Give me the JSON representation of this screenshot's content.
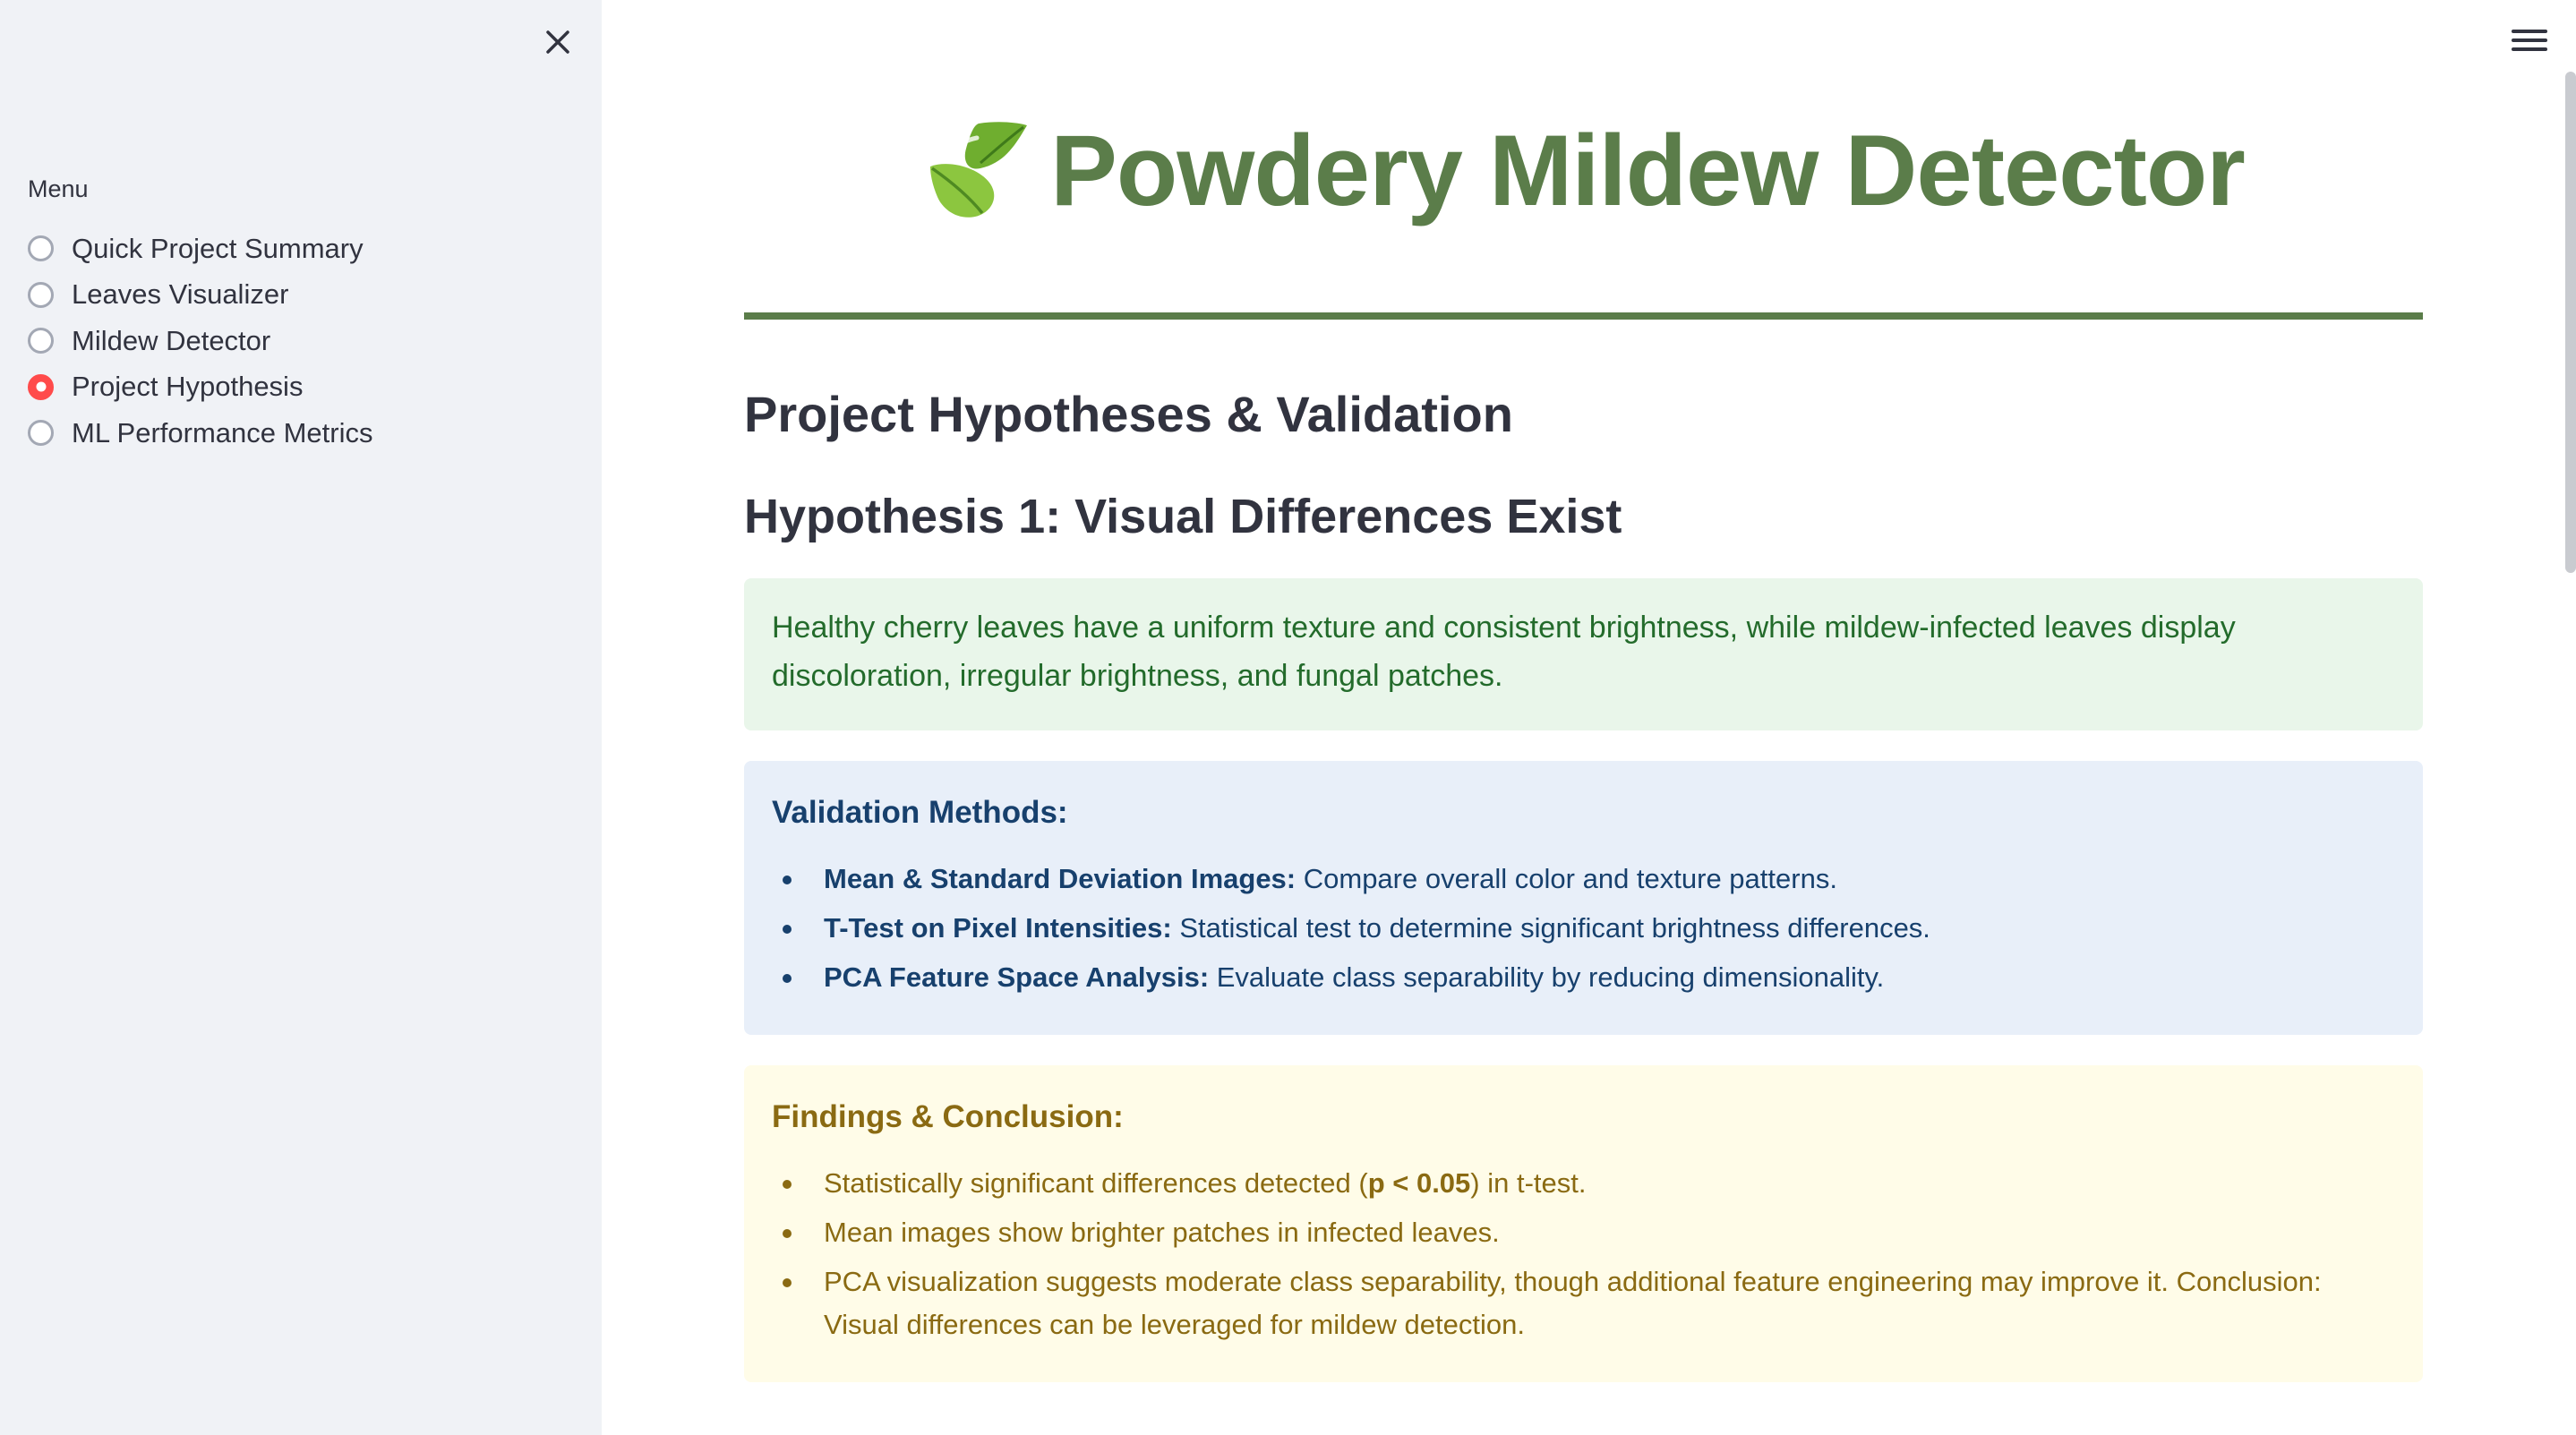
{
  "sidebar": {
    "menu_label": "Menu",
    "selected_index": 3,
    "items": [
      {
        "label": "Quick Project Summary",
        "checked": false
      },
      {
        "label": "Leaves Visualizer",
        "checked": false
      },
      {
        "label": "Mildew Detector",
        "checked": false
      },
      {
        "label": "Project Hypothesis",
        "checked": true
      },
      {
        "label": "ML Performance Metrics",
        "checked": false
      }
    ],
    "accent_color": "#ff4b4b"
  },
  "header": {
    "title": "Powdery Mildew Detector",
    "title_icon": "leaf-icon",
    "title_color": "#5b7d4a"
  },
  "main": {
    "section_title": "Project Hypotheses & Validation",
    "hypothesis_title": "Hypothesis 1: Visual Differences Exist",
    "hypothesis_statement": "Healthy cherry leaves have a uniform texture and consistent brightness, while mildew-infected leaves display discoloration, irregular brightness, and fungal patches.",
    "validation": {
      "heading": "Validation Methods:",
      "items": [
        {
          "bold": "Mean & Standard Deviation Images:",
          "text": " Compare overall color and texture patterns."
        },
        {
          "bold": "T-Test on Pixel Intensities:",
          "text": " Statistical test to determine significant brightness differences."
        },
        {
          "bold": "PCA Feature Space Analysis:",
          "text": " Evaluate class separability by reducing dimensionality."
        }
      ]
    },
    "findings": {
      "heading": "Findings & Conclusion:",
      "item1_pre": "Statistically significant differences detected (",
      "item1_bold": "p < 0.05",
      "item1_post": ") in t-test.",
      "item2": "Mean images show brighter patches in infected leaves.",
      "item3": "PCA visualization suggests moderate class separability, though additional feature engineering may improve it. Conclusion: Visual differences can be leveraged for mildew detection."
    },
    "colors": {
      "success_bg": "#e9f6ea",
      "info_bg": "#e8eff9",
      "warning_bg": "#fffce8"
    }
  },
  "icons": {
    "close": "close-icon",
    "menu": "hamburger-menu-icon"
  }
}
